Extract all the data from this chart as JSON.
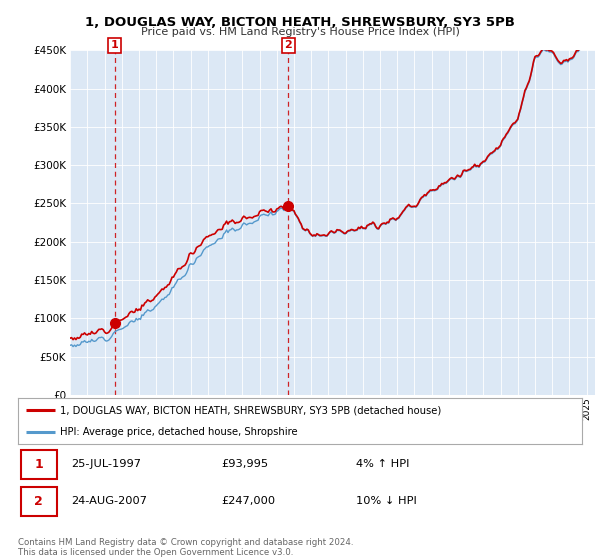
{
  "title": "1, DOUGLAS WAY, BICTON HEATH, SHREWSBURY, SY3 5PB",
  "subtitle": "Price paid vs. HM Land Registry's House Price Index (HPI)",
  "legend_line1": "1, DOUGLAS WAY, BICTON HEATH, SHREWSBURY, SY3 5PB (detached house)",
  "legend_line2": "HPI: Average price, detached house, Shropshire",
  "sale1_date": "25-JUL-1997",
  "sale1_price": 93995,
  "sale1_hpi": "4% ↑ HPI",
  "sale2_date": "24-AUG-2007",
  "sale2_price": 247000,
  "sale2_hpi": "10% ↓ HPI",
  "footer": "Contains HM Land Registry data © Crown copyright and database right 2024.\nThis data is licensed under the Open Government Licence v3.0.",
  "red_color": "#cc0000",
  "blue_color": "#5599cc",
  "background_color": "#dce8f5",
  "ylim": [
    0,
    450000
  ],
  "yticks": [
    0,
    50000,
    100000,
    150000,
    200000,
    250000,
    300000,
    350000,
    400000,
    450000
  ]
}
